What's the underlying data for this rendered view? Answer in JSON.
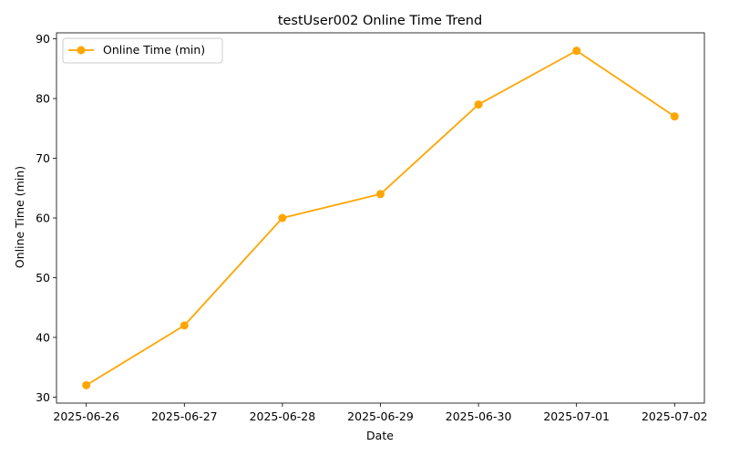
{
  "chart_data": {
    "type": "line",
    "title": "testUser002 Online Time Trend",
    "xlabel": "Date",
    "ylabel": "Online Time (min)",
    "x": [
      "2025-06-26",
      "2025-06-27",
      "2025-06-28",
      "2025-06-29",
      "2025-06-30",
      "2025-07-01",
      "2025-07-02"
    ],
    "series": [
      {
        "name": "Online Time (min)",
        "values": [
          32,
          42,
          60,
          64,
          79,
          88,
          77
        ],
        "color": "#FFA500",
        "marker": "circle"
      }
    ],
    "ylim": [
      29,
      91
    ],
    "yticks": [
      30,
      40,
      50,
      60,
      70,
      80,
      90
    ],
    "grid": false,
    "legend": {
      "position": "top-left"
    }
  }
}
